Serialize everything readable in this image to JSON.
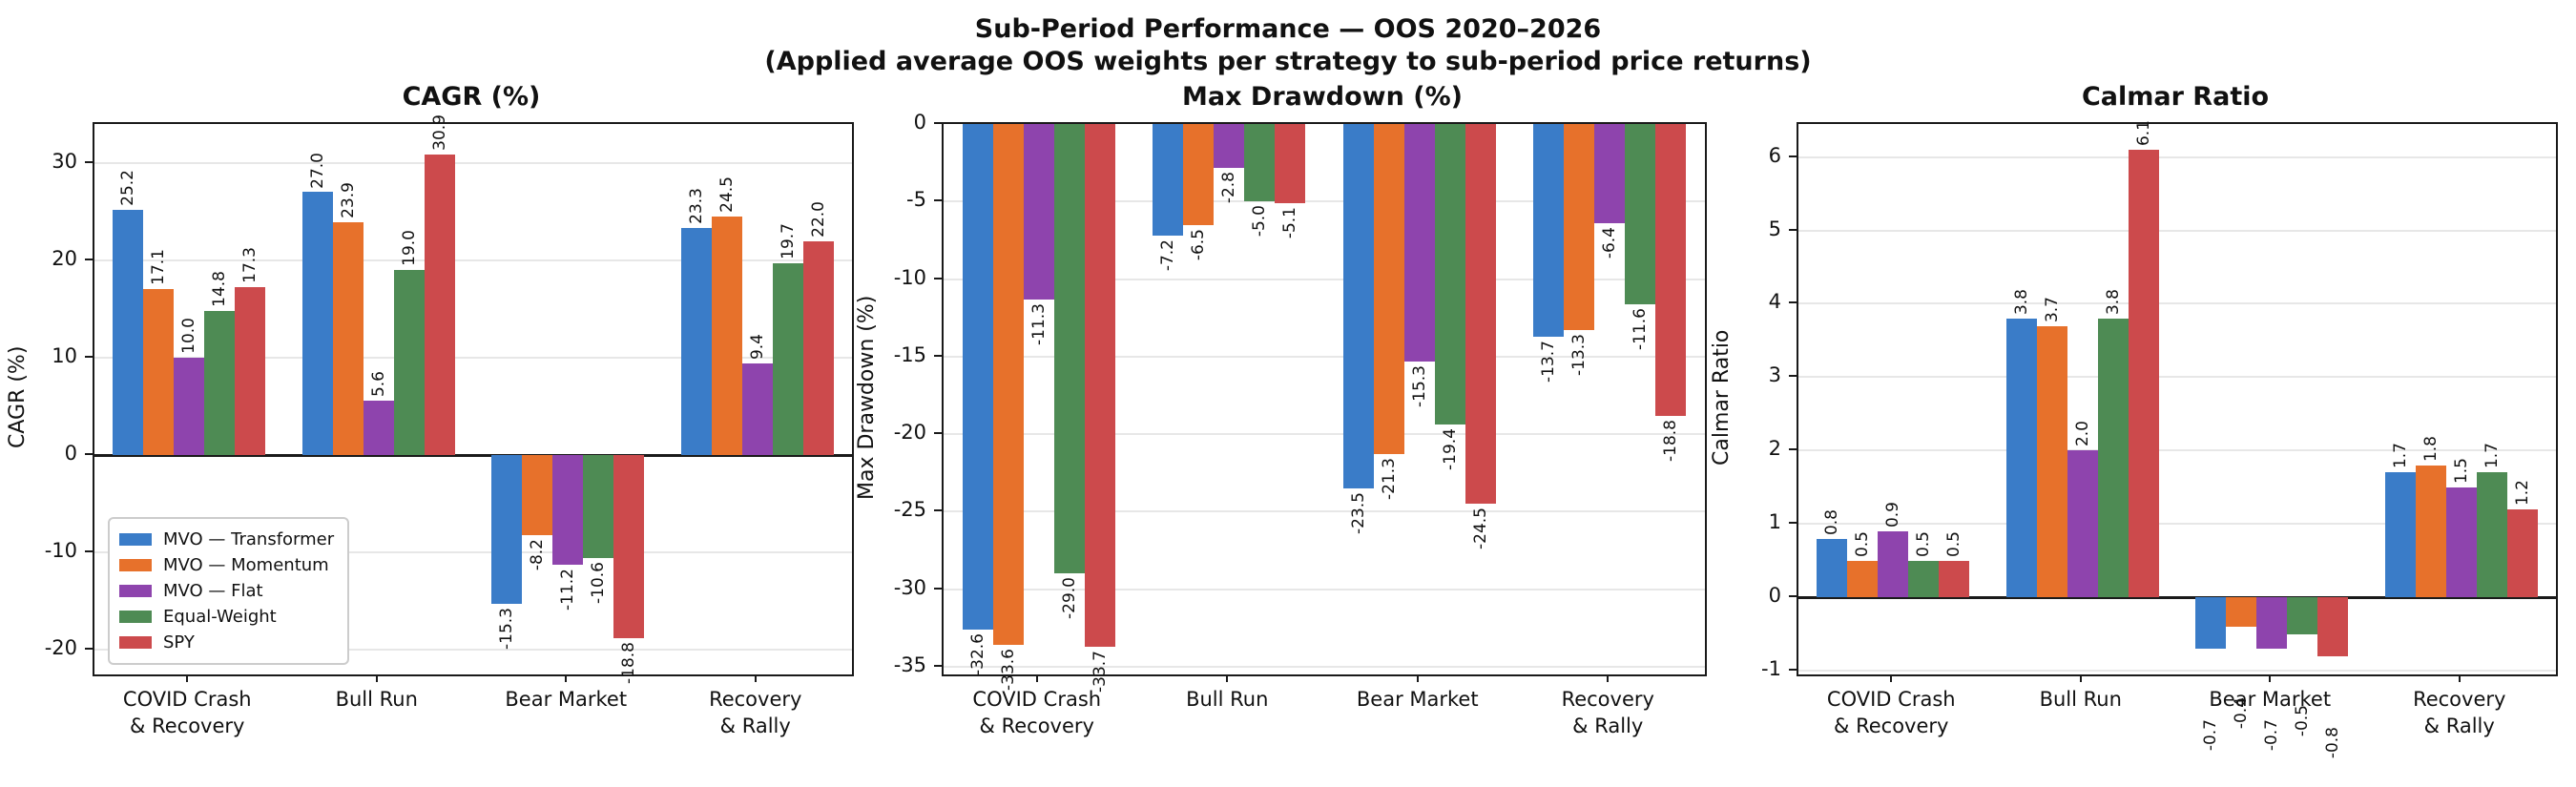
{
  "figure": {
    "suptitle_line1": "Sub-Period Performance — OOS 2020–2026",
    "suptitle_line2": "(Applied average OOS weights per strategy to sub-period price returns)"
  },
  "colors": {
    "series": [
      "#3A7CC8",
      "#E7712B",
      "#8E44AD",
      "#4E8B54",
      "#CC4A4C"
    ],
    "grid": "#e7e7e7",
    "axis": "#1a1a1a"
  },
  "legend": {
    "items": [
      "MVO — Transformer",
      "MVO — Momentum",
      "MVO — Flat",
      "Equal-Weight",
      "SPY"
    ]
  },
  "chart_data": [
    {
      "type": "bar",
      "title": "CAGR (%)",
      "ylabel": "CAGR (%)",
      "categories": [
        "COVID Crash\n& Recovery",
        "Bull Run",
        "Bear Market",
        "Recovery\n& Rally"
      ],
      "series": [
        {
          "name": "MVO — Transformer",
          "values": [
            25.2,
            27.0,
            -15.3,
            23.3
          ]
        },
        {
          "name": "MVO — Momentum",
          "values": [
            17.1,
            23.9,
            -8.2,
            24.5
          ]
        },
        {
          "name": "MVO — Flat",
          "values": [
            10.0,
            5.6,
            -11.2,
            9.4
          ]
        },
        {
          "name": "Equal-Weight",
          "values": [
            14.8,
            19.0,
            -10.6,
            19.7
          ]
        },
        {
          "name": "SPY",
          "values": [
            17.3,
            30.9,
            -18.8,
            22.0
          ]
        }
      ],
      "ylim": [
        -22.5,
        34.0
      ],
      "yticks": [
        30,
        20,
        10,
        0,
        -10,
        -20
      ],
      "grid": true,
      "legend": true,
      "legend_position": "lower-left"
    },
    {
      "type": "bar",
      "title": "Max Drawdown (%)",
      "ylabel": "Max Drawdown (%)",
      "categories": [
        "COVID Crash\n& Recovery",
        "Bull Run",
        "Bear Market",
        "Recovery\n& Rally"
      ],
      "series": [
        {
          "name": "MVO — Transformer",
          "values": [
            -32.6,
            -7.2,
            -23.5,
            -13.7
          ]
        },
        {
          "name": "MVO — Momentum",
          "values": [
            -33.6,
            -6.5,
            -21.3,
            -13.3
          ]
        },
        {
          "name": "MVO — Flat",
          "values": [
            -11.3,
            -2.8,
            -15.3,
            -6.4
          ]
        },
        {
          "name": "Equal-Weight",
          "values": [
            -29.0,
            -5.0,
            -19.4,
            -11.6
          ]
        },
        {
          "name": "SPY",
          "values": [
            -33.7,
            -5.1,
            -24.5,
            -18.8
          ]
        }
      ],
      "ylim": [
        -35.5,
        0.0
      ],
      "yticks": [
        0,
        -5,
        -10,
        -15,
        -20,
        -25,
        -30,
        -35
      ],
      "grid": true,
      "legend": false
    },
    {
      "type": "bar",
      "title": "Calmar Ratio",
      "ylabel": "Calmar Ratio",
      "categories": [
        "COVID Crash\n& Recovery",
        "Bull Run",
        "Bear Market",
        "Recovery\n& Rally"
      ],
      "series": [
        {
          "name": "MVO — Transformer",
          "values": [
            0.8,
            3.8,
            -0.7,
            1.7
          ]
        },
        {
          "name": "MVO — Momentum",
          "values": [
            0.5,
            3.7,
            -0.4,
            1.8
          ]
        },
        {
          "name": "MVO — Flat",
          "values": [
            0.9,
            2.0,
            -0.7,
            1.5
          ]
        },
        {
          "name": "Equal-Weight",
          "values": [
            0.5,
            3.8,
            -0.5,
            1.7
          ]
        },
        {
          "name": "SPY",
          "values": [
            0.5,
            6.1,
            -0.8,
            1.2
          ]
        }
      ],
      "ylim": [
        -1.05,
        6.45
      ],
      "yticks": [
        6,
        5,
        4,
        3,
        2,
        1,
        0,
        -1
      ],
      "grid": true,
      "legend": false
    }
  ]
}
